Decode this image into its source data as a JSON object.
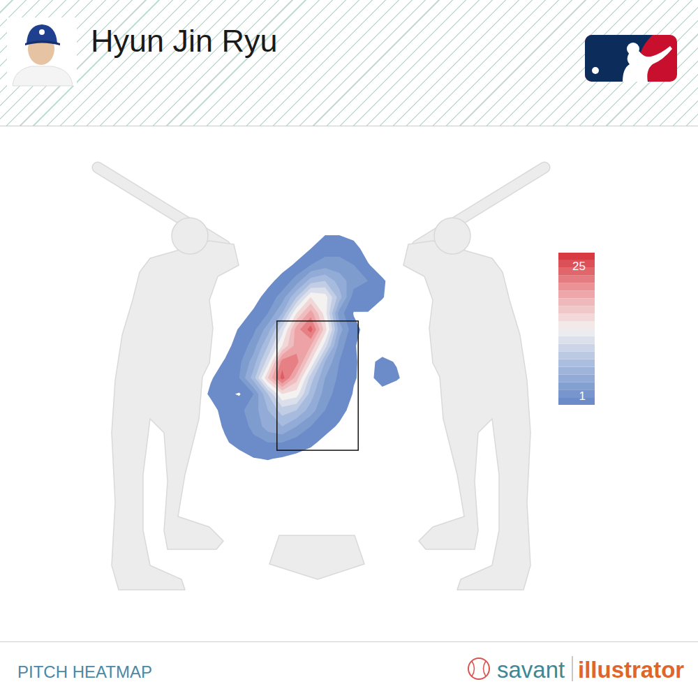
{
  "chart_data": {
    "type": "heatmap",
    "title": "Hyun Jin Ryu",
    "caption": "PITCH HEATMAP",
    "source": {
      "brand": "savant",
      "product": "illustrator"
    },
    "tick_labels": false,
    "xlim": [
      -2.5,
      2.5
    ],
    "ylim": [
      0,
      5
    ],
    "strike_zone": {
      "x": [
        -0.71,
        0.71
      ],
      "y": [
        1.5,
        3.5
      ]
    },
    "colorbar": {
      "range": [
        1,
        25
      ],
      "ticks": [
        1,
        25
      ]
    },
    "cells": [
      [
        0,
        0,
        0,
        0,
        0,
        0,
        0,
        0,
        0,
        0.3,
        0.8,
        0.8,
        0.5,
        0,
        0,
        0,
        0,
        0,
        0,
        0
      ],
      [
        0,
        0,
        0,
        0,
        0,
        0,
        0,
        0,
        0.3,
        1,
        2,
        2,
        1.5,
        0.4,
        0,
        0,
        0,
        0,
        0,
        0
      ],
      [
        0,
        0,
        0,
        0,
        0,
        0,
        0,
        0.5,
        1.2,
        3,
        4,
        4,
        3,
        1.1,
        0.3,
        0,
        0,
        0,
        0,
        0
      ],
      [
        0,
        0,
        0,
        0,
        0,
        0,
        0.6,
        1.5,
        4,
        8,
        9,
        6,
        4,
        3,
        1.2,
        0.3,
        0,
        0,
        0,
        0
      ],
      [
        0,
        0,
        0,
        0,
        0,
        0.5,
        1.5,
        4,
        9,
        15,
        14,
        8,
        2,
        2,
        1.1,
        0.2,
        0,
        0,
        0,
        0
      ],
      [
        0,
        0,
        0,
        0,
        0.4,
        1.2,
        3,
        7,
        15,
        20,
        14,
        4,
        0.9,
        0.9,
        0.3,
        0,
        0,
        0,
        0,
        0
      ],
      [
        0,
        0,
        0,
        0.3,
        1.1,
        2.5,
        6,
        12,
        20,
        24,
        16,
        6,
        1.5,
        0.4,
        0,
        0,
        0,
        0,
        0,
        0
      ],
      [
        0,
        0,
        0,
        0.6,
        1.5,
        4,
        9,
        15,
        20,
        19,
        12,
        4,
        1.1,
        0.5,
        0.3,
        0,
        0,
        0,
        0,
        0
      ],
      [
        0,
        0,
        0.4,
        1.1,
        2.5,
        6,
        12,
        22,
        22,
        15,
        7,
        3,
        1.1,
        0.7,
        1.3,
        0.9,
        0,
        0,
        0,
        0
      ],
      [
        0,
        0.2,
        0.9,
        1.5,
        3,
        8,
        17,
        24,
        18,
        10,
        5,
        2.5,
        1.1,
        0.6,
        1.6,
        1.2,
        0.3,
        0,
        0,
        0
      ],
      [
        0,
        0.3,
        1.2,
        1.5,
        0.8,
        3,
        9,
        15,
        14,
        8,
        4,
        2,
        0.9,
        0.3,
        0.5,
        0,
        0,
        0,
        0,
        0
      ],
      [
        0,
        0,
        0.5,
        1.5,
        2.5,
        4,
        7,
        10,
        9,
        6,
        3,
        1.5,
        0.5,
        0,
        0,
        0,
        0,
        0,
        0,
        0
      ],
      [
        0,
        0,
        0.3,
        1.2,
        2,
        3.5,
        6,
        7,
        5,
        3,
        1.5,
        0.8,
        0,
        0,
        0,
        0,
        0,
        0,
        0,
        0
      ],
      [
        0,
        0,
        0,
        0.8,
        1.5,
        2.5,
        3,
        3,
        2,
        1.3,
        0.6,
        0,
        0,
        0,
        0,
        0,
        0,
        0,
        0,
        0
      ],
      [
        0,
        0,
        0,
        0,
        0.4,
        0.9,
        1.1,
        0.8,
        0.5,
        0.3,
        0,
        0,
        0,
        0,
        0,
        0,
        0,
        0,
        0,
        0
      ],
      [
        0,
        0,
        0,
        0,
        0,
        0,
        0,
        0,
        0,
        0,
        0,
        0,
        0,
        0,
        0,
        0,
        0,
        0,
        0,
        0
      ],
      [
        0,
        0,
        0,
        0,
        0,
        0,
        0,
        0,
        0,
        0,
        0,
        0,
        0,
        0,
        0,
        0,
        0,
        0,
        0,
        0
      ],
      [
        0,
        0,
        0,
        0,
        0,
        0,
        0,
        0,
        0,
        0,
        0,
        0,
        0,
        0,
        0,
        0,
        0,
        0,
        0,
        0
      ],
      [
        0,
        0,
        0,
        0,
        0,
        0,
        0,
        0,
        0,
        0,
        0,
        0,
        0,
        0,
        0,
        0,
        0,
        0,
        0,
        0
      ],
      [
        0,
        0,
        0,
        0,
        0,
        0,
        0,
        0,
        0,
        0,
        0,
        0,
        0,
        0,
        0,
        0,
        0,
        0,
        0,
        0
      ]
    ]
  }
}
